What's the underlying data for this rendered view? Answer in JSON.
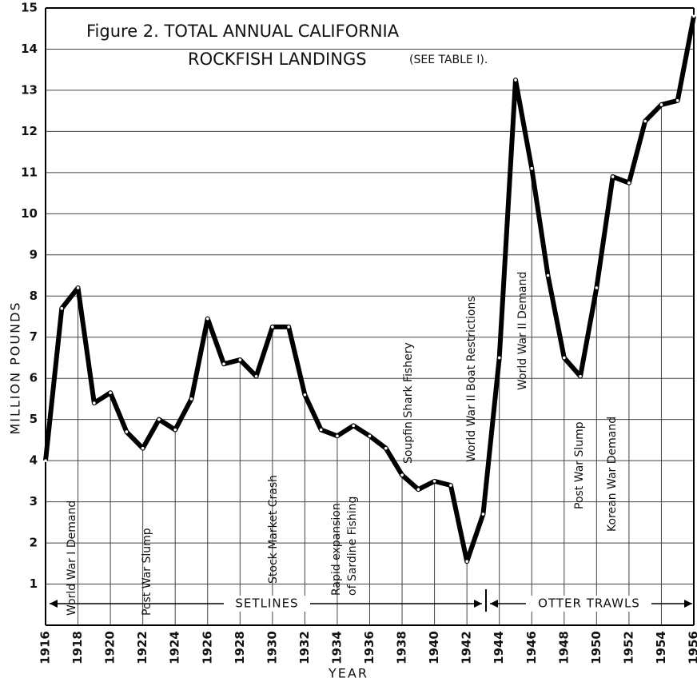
{
  "chart_data": {
    "type": "line",
    "title": "Figure 2. TOTAL ANNUAL CALIFORNIA",
    "subtitle": "ROCKFISH LANDINGS",
    "subtitle_note": "(SEE TABLE I).",
    "x_label": "YEAR",
    "y_label": "MILLION POUNDS",
    "x": [
      1916,
      1917,
      1918,
      1919,
      1920,
      1921,
      1922,
      1923,
      1924,
      1925,
      1926,
      1927,
      1928,
      1929,
      1930,
      1931,
      1932,
      1933,
      1934,
      1935,
      1936,
      1937,
      1938,
      1939,
      1940,
      1941,
      1942,
      1943,
      1944,
      1945,
      1946,
      1947,
      1948,
      1949,
      1950,
      1951,
      1952,
      1953,
      1954,
      1955,
      1956
    ],
    "series": [
      {
        "name": "Rockfish landings",
        "color": "#000000",
        "values": [
          4.0,
          7.7,
          8.2,
          5.4,
          5.65,
          4.7,
          4.3,
          5.0,
          4.75,
          5.5,
          7.45,
          6.35,
          6.45,
          6.05,
          7.25,
          7.25,
          5.6,
          4.75,
          4.6,
          4.85,
          4.6,
          4.3,
          3.65,
          3.3,
          3.5,
          3.4,
          1.55,
          2.7,
          6.5,
          13.25,
          11.1,
          8.5,
          6.5,
          6.05,
          8.2,
          10.9,
          10.75,
          12.25,
          12.65,
          12.75,
          14.8
        ]
      }
    ],
    "xlim": [
      1916,
      1956
    ],
    "xticks": [
      1916,
      1918,
      1920,
      1922,
      1924,
      1926,
      1928,
      1930,
      1932,
      1934,
      1936,
      1938,
      1940,
      1942,
      1944,
      1946,
      1948,
      1950,
      1952,
      1954,
      1956
    ],
    "ylim": [
      0,
      15
    ],
    "yticks": [
      1,
      2,
      3,
      4,
      5,
      6,
      7,
      8,
      9,
      10,
      11,
      12,
      13,
      14,
      15
    ],
    "grid": true,
    "annotations": [
      "World War I Demand",
      "Post War Slump",
      "Stock Market Crash",
      "Rapid expansion",
      "of Sardine Fishing",
      "Soupfin Shark Fishery",
      "World War II Boat Restrictions",
      "World War II Demand",
      "Post War Slump",
      "Korean War Demand"
    ],
    "gear_labels": [
      "SETLINES",
      "OTTER TRAWLS"
    ]
  }
}
